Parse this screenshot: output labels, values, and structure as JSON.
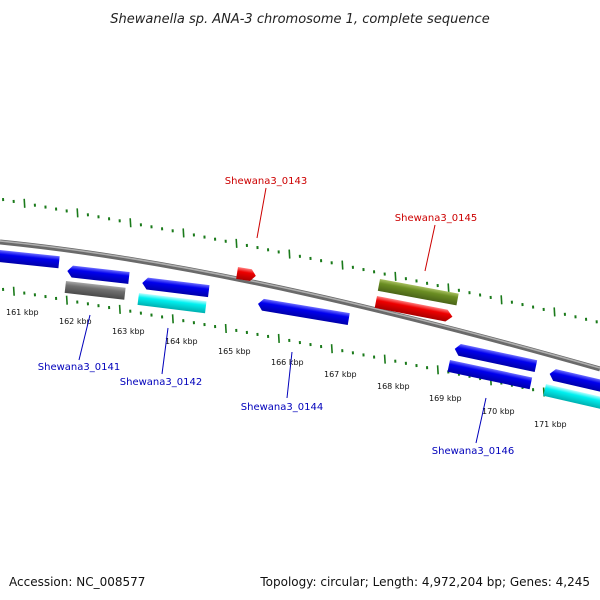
{
  "title": "Shewanella sp. ANA-3 chromosome 1, complete sequence",
  "footer": {
    "accession": "Accession: NC_008577",
    "summary": "Topology: circular; Length: 4,972,204 bp; Genes: 4,245"
  },
  "colors": {
    "backbone": "#808080",
    "ticks": "#1a7a1a",
    "label_forward": "#cc0000",
    "label_reverse": "#0000bb",
    "blue": "#0000ee",
    "grey": "#666666",
    "cyan": "#00eeee",
    "red": "#ee0000",
    "olive": "#6b8e23"
  },
  "ticks": [
    "161 kbp",
    "162 kbp",
    "163 kbp",
    "164 kbp",
    "165 kbp",
    "166 kbp",
    "167 kbp",
    "168 kbp",
    "169 kbp",
    "170 kbp",
    "171 kbp"
  ],
  "gene_labels": [
    {
      "text": "Shewana3_0143",
      "strand": "forward"
    },
    {
      "text": "Shewana3_0145",
      "strand": "forward"
    },
    {
      "text": "Shewana3_0141",
      "strand": "reverse"
    },
    {
      "text": "Shewana3_0142",
      "strand": "reverse"
    },
    {
      "text": "Shewana3_0144",
      "strand": "reverse"
    },
    {
      "text": "Shewana3_0146",
      "strand": "reverse"
    }
  ]
}
